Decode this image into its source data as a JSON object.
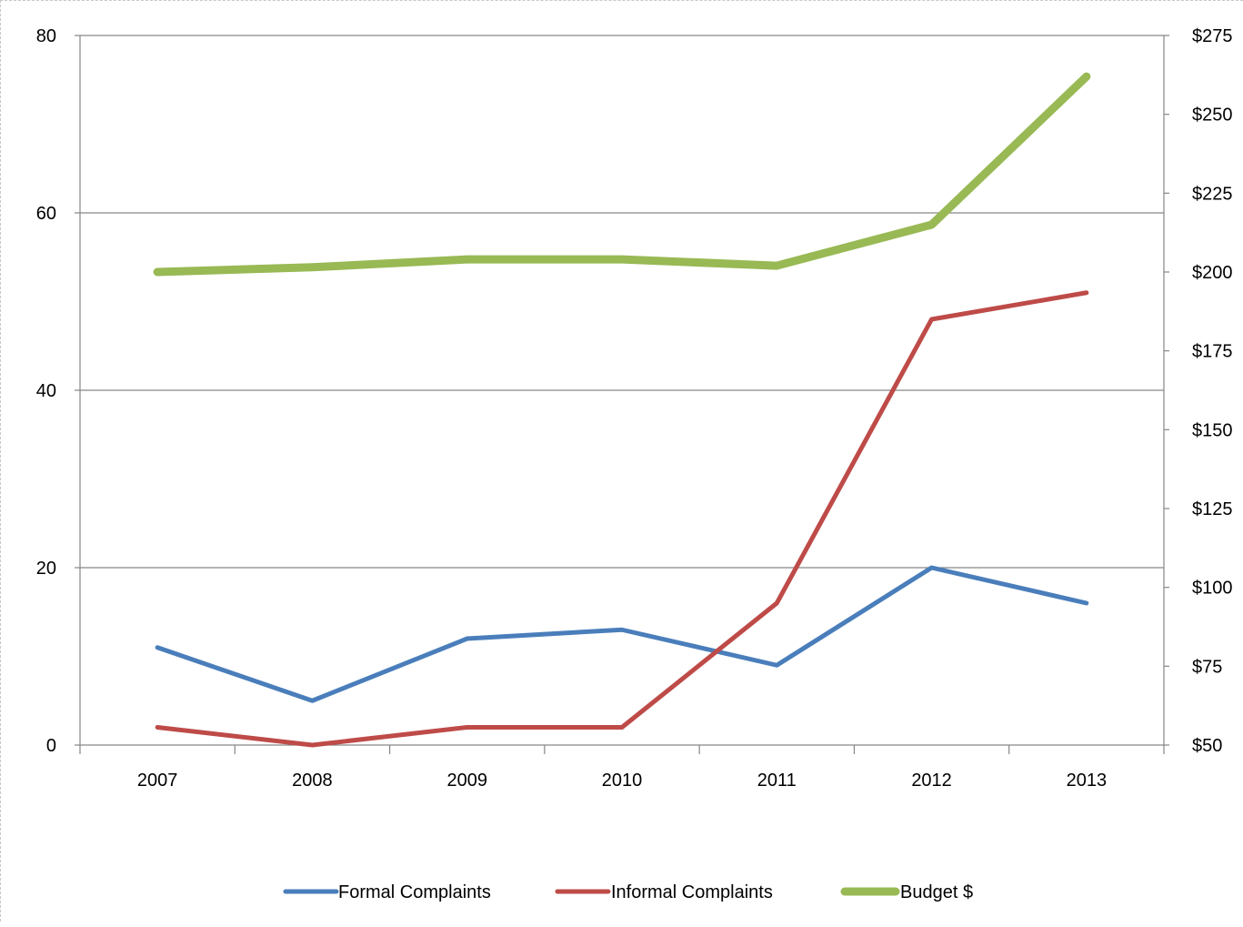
{
  "chart_data": {
    "type": "line",
    "categories": [
      "2007",
      "2008",
      "2009",
      "2010",
      "2011",
      "2012",
      "2013"
    ],
    "y_left": {
      "ylim": [
        0,
        80
      ],
      "ticks": [
        0,
        20,
        40,
        60,
        80
      ],
      "tick_labels": [
        "0",
        "20",
        "40",
        "60",
        "80"
      ]
    },
    "y_right": {
      "ylim": [
        50,
        275
      ],
      "ticks": [
        50,
        75,
        100,
        125,
        150,
        175,
        200,
        225,
        250,
        275
      ],
      "tick_labels": [
        "$50",
        "$75",
        "$100",
        "$125",
        "$150",
        "$175",
        "$200",
        "$225",
        "$250",
        "$275"
      ]
    },
    "grid": true,
    "legend_position": "bottom",
    "series": [
      {
        "name": "Formal Complaints",
        "axis": "left",
        "color": "#4a7ebb",
        "values": [
          11,
          5,
          12,
          13,
          9,
          20,
          16
        ]
      },
      {
        "name": "Informal Complaints",
        "axis": "left",
        "color": "#be4b48",
        "values": [
          2,
          0,
          2,
          2,
          16,
          48,
          51
        ]
      },
      {
        "name": "Budget $",
        "axis": "right",
        "color": "#98b954",
        "values": [
          200,
          201.5,
          204,
          204,
          202,
          215,
          262
        ]
      }
    ]
  }
}
